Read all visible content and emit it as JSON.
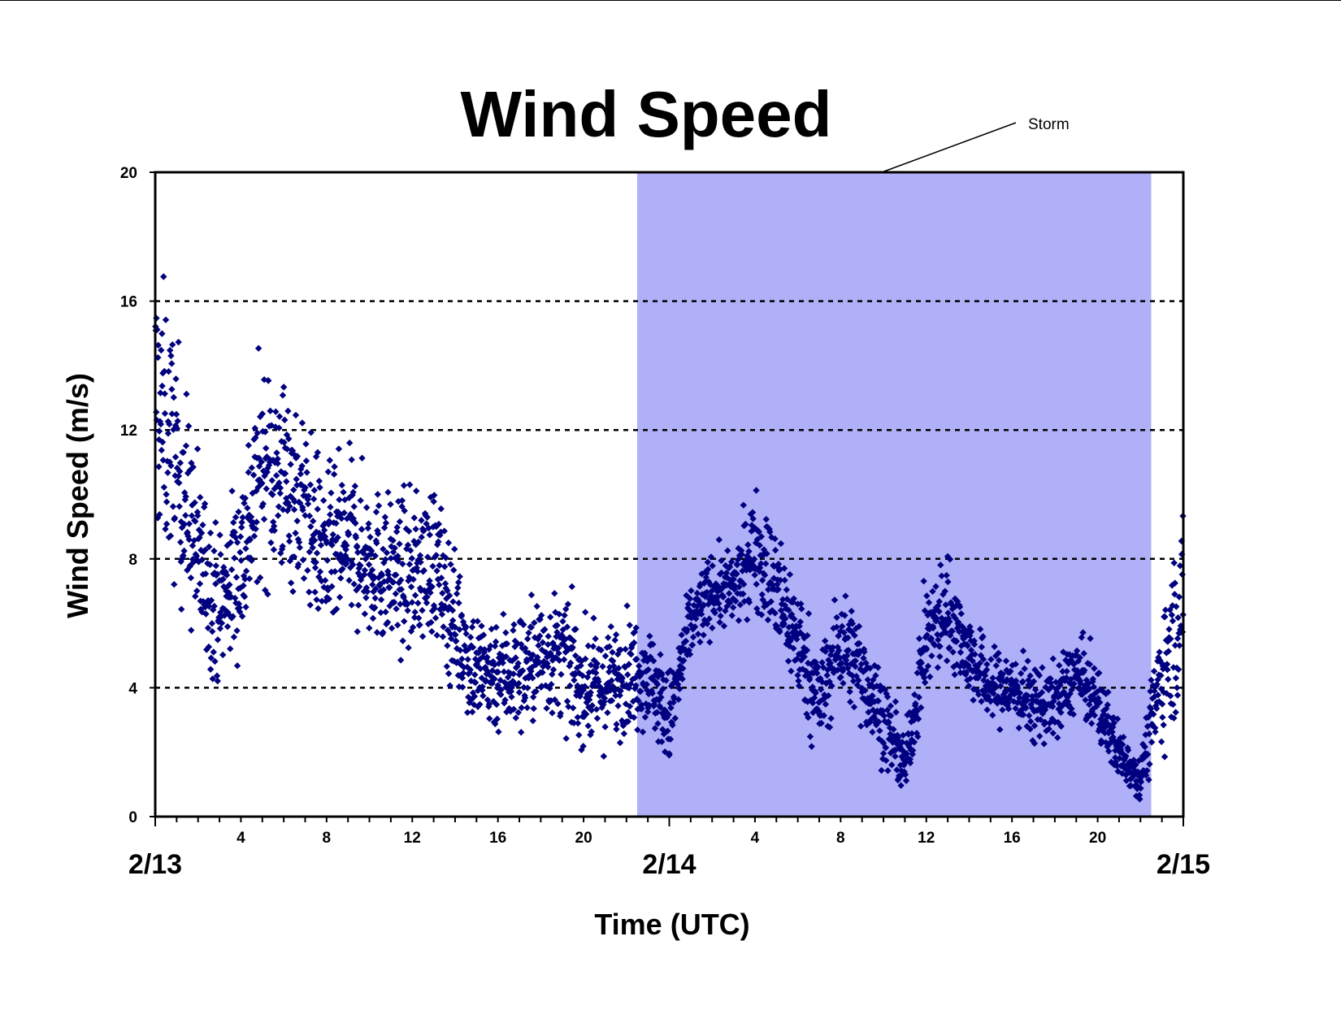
{
  "chart_data": {
    "type": "scatter",
    "title": "Wind Speed",
    "xlabel": "Time (UTC)",
    "ylabel": "Wind Speed (m/s)",
    "ylim": [
      0,
      20
    ],
    "xlim": [
      "2/13 00:00",
      "2/15 00:00"
    ],
    "yticks": [
      "0",
      "4",
      "8",
      "12",
      "16",
      "20"
    ],
    "xticks_hours": [
      "4",
      "8",
      "12",
      "16",
      "20",
      "4",
      "8",
      "12",
      "16",
      "20"
    ],
    "date_labels": [
      "2/13",
      "2/14",
      "2/15"
    ],
    "grid": "horizontal dotted lines at 4, 8, 12, 16",
    "storm_period": {
      "label": "Storm",
      "start": "2/13 22:30",
      "end": "2/14 22:30",
      "color": "#b0b0f8"
    },
    "marker": {
      "shape": "diamond",
      "color": "#000080"
    },
    "series": [
      {
        "time_hours": [
          0,
          1,
          2,
          3,
          4,
          5,
          6,
          7,
          8,
          9,
          10,
          11,
          12,
          13,
          14,
          15,
          16,
          17,
          18,
          19,
          20,
          21,
          22,
          23,
          24,
          25,
          26,
          27,
          28,
          29,
          30,
          31,
          32,
          33,
          34,
          35,
          36,
          37,
          38,
          39,
          40,
          41,
          42,
          43,
          44,
          45,
          46,
          47,
          48
        ],
        "median_speed_ms": [
          13.0,
          11.0,
          8.0,
          6.5,
          8.0,
          11.0,
          10.5,
          9.5,
          8.0,
          8.5,
          8.0,
          7.5,
          7.5,
          8.0,
          6.0,
          4.5,
          4.5,
          4.5,
          5.0,
          5.0,
          4.0,
          4.0,
          4.5,
          4.5,
          3.0,
          6.0,
          7.0,
          7.0,
          8.5,
          7.0,
          5.5,
          3.5,
          5.5,
          4.5,
          3.0,
          1.5,
          5.5,
          6.5,
          5.0,
          4.0,
          4.0,
          3.5,
          3.5,
          4.5,
          3.5,
          2.0,
          1.2,
          4.5,
          6.5
        ],
        "spread_ms": [
          3.0,
          2.5,
          2.0,
          1.5,
          2.0,
          2.2,
          2.2,
          1.8,
          1.8,
          1.8,
          1.6,
          1.6,
          1.6,
          1.6,
          1.4,
          1.3,
          1.3,
          1.3,
          1.3,
          1.3,
          1.2,
          1.2,
          1.2,
          1.1,
          1.0,
          0.8,
          0.8,
          0.8,
          1.2,
          1.3,
          1.2,
          1.1,
          1.1,
          1.1,
          0.9,
          0.6,
          1.2,
          1.1,
          0.9,
          0.8,
          0.8,
          0.8,
          0.8,
          0.8,
          0.8,
          0.6,
          0.4,
          1.5,
          1.8
        ]
      }
    ]
  }
}
